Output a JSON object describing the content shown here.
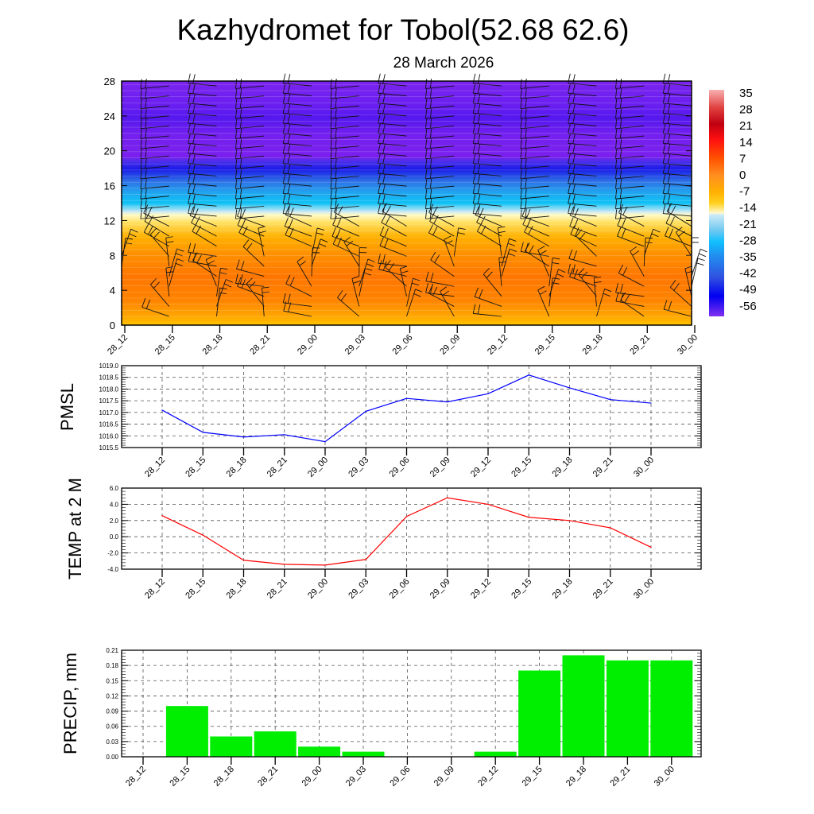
{
  "title": "Kazhydromet for Tobol(52.68 62.6)",
  "subtitle": "28 March 2026",
  "categories": [
    "28_12",
    "28_15",
    "28_18",
    "28_21",
    "29_00",
    "29_03",
    "29_06",
    "29_09",
    "29_12",
    "29_15",
    "29_18",
    "29_21",
    "30_00"
  ],
  "chart_data": [
    {
      "type": "heatmap",
      "name": "vertical temperature profile with wind barbs",
      "ylim": [
        0,
        28
      ],
      "yticks": [
        "0",
        "4",
        "8",
        "12",
        "16",
        "20",
        "24",
        "28"
      ],
      "colorbar_ticks": [
        "35",
        "28",
        "21",
        "14",
        "7",
        "0",
        "-7",
        "-14",
        "-21",
        "-28",
        "-35",
        "-42",
        "-49",
        "-56"
      ],
      "colors": {
        "warm": "#ff7a00",
        "cold": "#7a20ee",
        "cyan": "#10c0f5",
        "blue": "#1a1ae8"
      }
    },
    {
      "type": "line",
      "ylabel": "PMSL",
      "ylim": [
        1015.5,
        1019.0
      ],
      "yticks": [
        "1015.5",
        "1016.0",
        "1016.5",
        "1017.0",
        "1017.5",
        "1018.0",
        "1018.5",
        "1019.0"
      ],
      "values": [
        1017.1,
        1016.15,
        1015.95,
        1016.05,
        1015.75,
        1017.05,
        1017.6,
        1017.45,
        1017.8,
        1018.6,
        1018.05,
        1017.55,
        1017.4
      ],
      "color": "#0000ff"
    },
    {
      "type": "line",
      "ylabel": "TEMP at 2 M",
      "ylim": [
        -4.0,
        6.0
      ],
      "yticks": [
        "-4.0",
        "-2.0",
        "0.0",
        "2.0",
        "4.0",
        "6.0"
      ],
      "values": [
        2.6,
        0.2,
        -2.9,
        -3.4,
        -3.5,
        -2.8,
        2.5,
        4.8,
        4.0,
        2.4,
        2.0,
        1.1,
        -1.3
      ],
      "color": "#ff0000"
    },
    {
      "type": "bar",
      "ylabel": "PRECIP, mm",
      "ylim": [
        0,
        0.21
      ],
      "yticks": [
        "0.00",
        "0.03",
        "0.06",
        "0.09",
        "0.12",
        "0.15",
        "0.18",
        "0.21"
      ],
      "values": [
        0,
        0.1,
        0.04,
        0.05,
        0.02,
        0.01,
        0,
        0,
        0.01,
        0.17,
        0.2,
        0.19,
        0.19
      ],
      "color": "#00ee00"
    }
  ]
}
